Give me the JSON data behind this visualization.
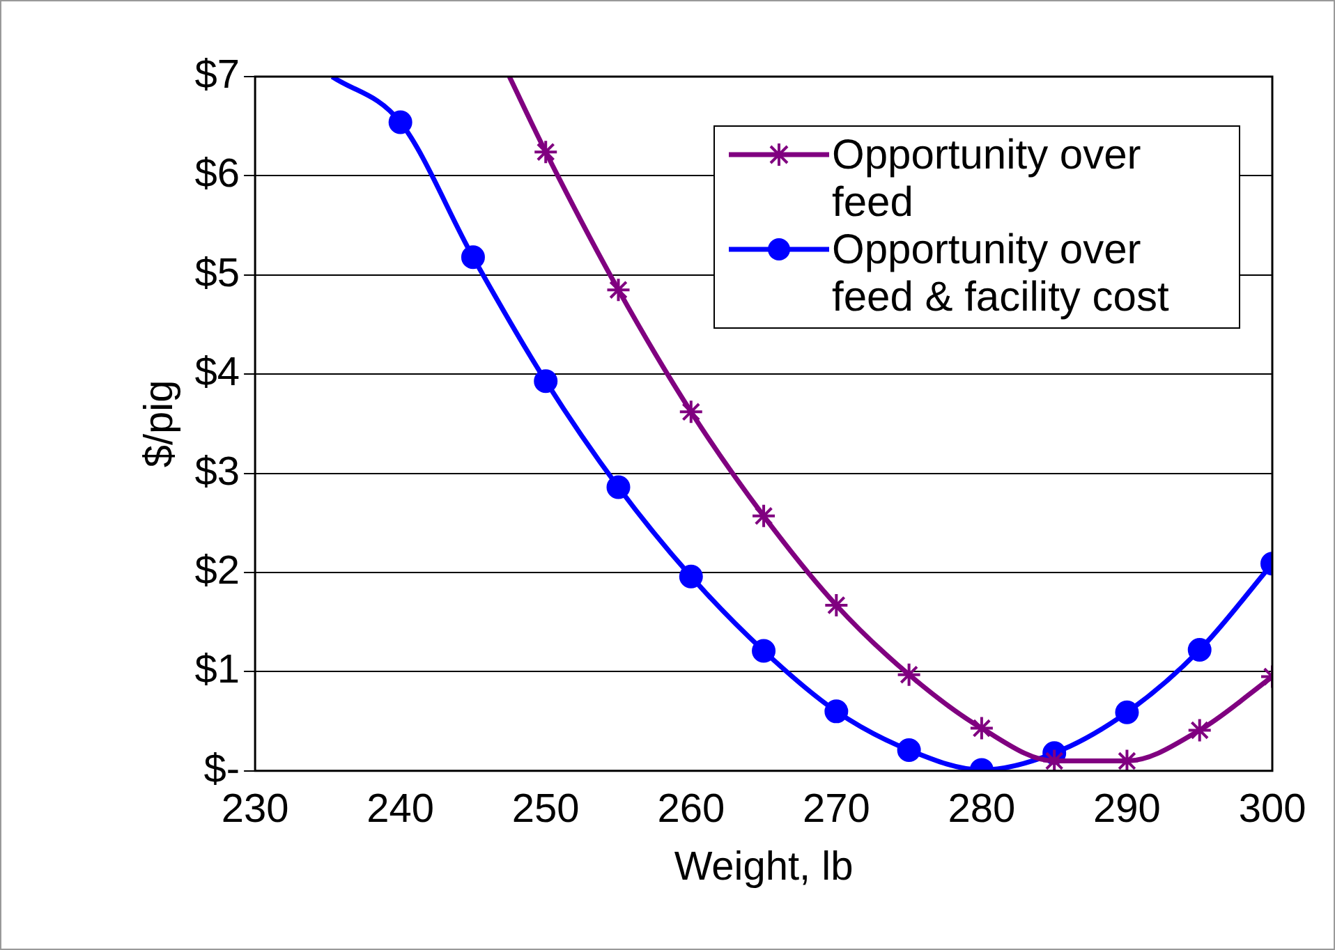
{
  "chart_data": {
    "type": "line",
    "xlabel": "Weight, lb",
    "ylabel": "$/pig",
    "xlim": [
      230,
      300
    ],
    "xticks": [
      230,
      240,
      250,
      260,
      270,
      280,
      290,
      300
    ],
    "ylim": [
      0,
      7
    ],
    "yticks": [
      {
        "value": 0,
        "label": "$-"
      },
      {
        "value": 1,
        "label": "$1"
      },
      {
        "value": 2,
        "label": "$2"
      },
      {
        "value": 3,
        "label": "$3"
      },
      {
        "value": 4,
        "label": "$4"
      },
      {
        "value": 5,
        "label": "$5"
      },
      {
        "value": 6,
        "label": "$6"
      },
      {
        "value": 7,
        "label": "$7"
      }
    ],
    "grid": "y",
    "legend": "top right",
    "series": [
      {
        "name": "Opportunity over feed",
        "color": "#800080",
        "marker": "cross",
        "x": [
          247.5,
          250,
          255,
          260,
          265,
          270,
          275,
          280,
          285,
          290,
          295,
          300
        ],
        "values": [
          7,
          6.24,
          4.85,
          3.62,
          2.57,
          1.67,
          0.97,
          0.43,
          0.1,
          0.1,
          0.41,
          0.95
        ]
      },
      {
        "name": "Opportunity over feed & facility cost",
        "color": "#0000ff",
        "marker": "circle",
        "x": [
          235.3,
          240,
          245,
          250,
          255,
          260,
          265,
          270,
          275,
          280,
          285,
          290,
          295,
          300
        ],
        "values": [
          7,
          6.54,
          5.18,
          3.93,
          2.86,
          1.96,
          1.21,
          0.6,
          0.21,
          0.01,
          0.18,
          0.59,
          1.22,
          2.09
        ]
      }
    ]
  }
}
